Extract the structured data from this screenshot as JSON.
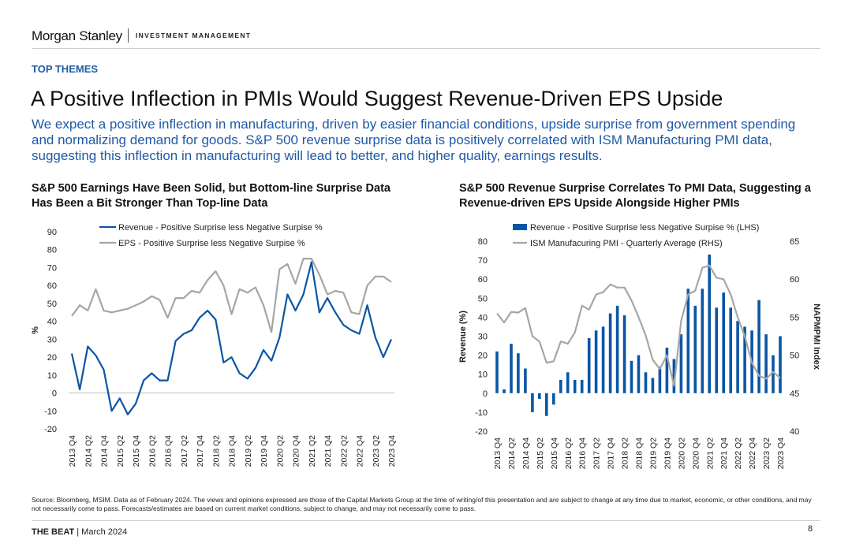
{
  "brand": {
    "name": "Morgan Stanley",
    "division": "INVESTMENT MANAGEMENT"
  },
  "section": "TOP THEMES",
  "headline": "A Positive Inflection in PMIs Would Suggest Revenue-Driven EPS Upside",
  "lead": "We expect a positive inflection in manufacturing, driven by easier financial conditions, upside surprise from government spending and normalizing demand for goods. S&P 500 revenue surprise data is positively correlated with ISM Manufacturing PMI data, suggesting this inflection in manufacturing will lead to better, and higher quality, earnings results.",
  "source": "Source: Bloomberg, MSIM. Data as of February 2024. The views and opinions expressed are those of the Capital Markets Group at the time of writing/of this presentation and are subject to change at any time due to market, economic, or other conditions, and may not necessarily come to pass. Forecasts/estimates are based on current market conditions, subject to change, and may not necessarily come to pass.",
  "footer": {
    "publication": "THE BEAT",
    "date": "| March 2024",
    "page": "8"
  },
  "colors": {
    "revenue": "#0a56a4",
    "eps": "#a6a6a6",
    "pmi": "#a6a6a6",
    "accent": "#1f5aa6"
  },
  "chart_data": [
    {
      "type": "line",
      "title": "S&P 500 Earnings Have Been Solid, but Bottom-line Surprise Data Has Been a Bit Stronger Than Top-line Data",
      "xlabel": "",
      "ylabel": "%",
      "ylim": [
        -20,
        90
      ],
      "yticks": [
        -20,
        -10,
        0,
        10,
        20,
        30,
        40,
        50,
        60,
        70,
        80,
        90
      ],
      "tick_labels": [
        "2013 Q4",
        "2014 Q2",
        "2014 Q4",
        "2015 Q2",
        "2015 Q4",
        "2016 Q2",
        "2016 Q4",
        "2017 Q2",
        "2017 Q4",
        "2018 Q2",
        "2018 Q4",
        "2019 Q2",
        "2019 Q4",
        "2020 Q2",
        "2020 Q4",
        "2021 Q2",
        "2021 Q4",
        "2022 Q2",
        "2022 Q4",
        "2023 Q2",
        "2023 Q4"
      ],
      "categories": [
        "2013 Q4",
        "2014 Q1",
        "2014 Q2",
        "2014 Q3",
        "2014 Q4",
        "2015 Q1",
        "2015 Q2",
        "2015 Q3",
        "2015 Q4",
        "2016 Q1",
        "2016 Q2",
        "2016 Q3",
        "2016 Q4",
        "2017 Q1",
        "2017 Q2",
        "2017 Q3",
        "2017 Q4",
        "2018 Q1",
        "2018 Q2",
        "2018 Q3",
        "2018 Q4",
        "2019 Q1",
        "2019 Q2",
        "2019 Q3",
        "2019 Q4",
        "2020 Q1",
        "2020 Q2",
        "2020 Q3",
        "2020 Q4",
        "2021 Q1",
        "2021 Q2",
        "2021 Q3",
        "2021 Q4",
        "2022 Q1",
        "2022 Q2",
        "2022 Q3",
        "2022 Q4",
        "2023 Q1",
        "2023 Q2",
        "2023 Q3",
        "2023 Q4"
      ],
      "series": [
        {
          "name": "Revenue - Positive Surprise less Negative Surpise %",
          "values": [
            22,
            2,
            26,
            21,
            13,
            -10,
            -3,
            -12,
            -6,
            7,
            11,
            7,
            7,
            29,
            33,
            35,
            42,
            46,
            41,
            17,
            20,
            11,
            8,
            14,
            24,
            18,
            31,
            55,
            46,
            55,
            73,
            45,
            53,
            45,
            38,
            35,
            33,
            49,
            31,
            20,
            30
          ]
        },
        {
          "name": "EPS - Positive Surprise less Negative Surpise %",
          "values": [
            43,
            49,
            46,
            58,
            46,
            45,
            46,
            47,
            49,
            51,
            54,
            52,
            42,
            53,
            53,
            57,
            56,
            63,
            68,
            60,
            44,
            58,
            56,
            59,
            49,
            34,
            69,
            72,
            61,
            75,
            75,
            66,
            55,
            57,
            56,
            45,
            44,
            60,
            65,
            65,
            62
          ]
        }
      ],
      "legend": "top-left"
    },
    {
      "type": "bar",
      "title": "S&P 500 Revenue Surprise Correlates To PMI Data, Suggesting a Revenue-driven EPS Upside Alongside Higher PMIs",
      "ylabel": "Revenue (%)",
      "ylim": [
        -20,
        80
      ],
      "yticks": [
        -20,
        -10,
        0,
        10,
        20,
        30,
        40,
        50,
        60,
        70,
        80
      ],
      "y2label": "NAPMPMI Index",
      "y2lim": [
        40,
        65
      ],
      "y2ticks": [
        40,
        45,
        50,
        55,
        60,
        65
      ],
      "tick_labels": [
        "2013 Q4",
        "2014 Q2",
        "2014 Q4",
        "2015 Q2",
        "2015 Q4",
        "2016 Q2",
        "2016 Q4",
        "2017 Q2",
        "2017 Q4",
        "2018 Q2",
        "2018 Q4",
        "2019 Q2",
        "2019 Q4",
        "2020 Q2",
        "2020 Q4",
        "2021 Q2",
        "2021 Q4",
        "2022 Q2",
        "2022 Q4",
        "2023 Q2",
        "2023 Q4"
      ],
      "series": [
        {
          "name": "Revenue - Positive Surprise less Negative Surpise % (LHS)",
          "type": "bar",
          "axis": "left",
          "values": [
            22,
            2,
            26,
            21,
            13,
            -10,
            -3,
            -12,
            -6,
            7,
            11,
            7,
            7,
            29,
            33,
            35,
            42,
            46,
            41,
            17,
            20,
            11,
            8,
            14,
            24,
            18,
            31,
            55,
            46,
            55,
            73,
            45,
            53,
            45,
            38,
            35,
            33,
            49,
            31,
            20,
            30
          ]
        },
        {
          "name": "ISM Manufacuring PMI - Quarterly Average (RHS)",
          "type": "line",
          "axis": "right",
          "values": [
            55.5,
            54.3,
            55.7,
            55.6,
            56.2,
            52.5,
            51.8,
            49.0,
            49.2,
            51.8,
            51.5,
            53.0,
            56.5,
            56.0,
            58.0,
            58.3,
            59.3,
            58.9,
            58.9,
            57.2,
            55.0,
            52.6,
            49.4,
            48.2,
            50.0,
            46.0,
            54.5,
            58.0,
            58.5,
            61.5,
            61.8,
            60.2,
            60.0,
            58.0,
            55.0,
            52.5,
            49.0,
            47.3,
            46.9,
            47.8,
            47.0
          ]
        }
      ],
      "legend": "top-left"
    }
  ]
}
